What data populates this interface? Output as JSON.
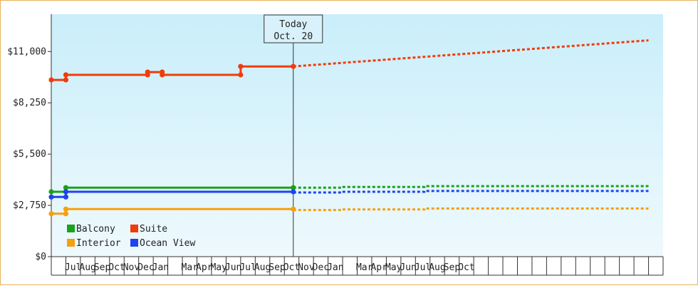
{
  "chart_data": {
    "type": "line",
    "title": "",
    "xlabel": "",
    "ylabel": "",
    "ylim": [
      0,
      13000
    ],
    "y_ticks": [
      {
        "value": 0,
        "label": "$0"
      },
      {
        "value": 2750,
        "label": "$2,750"
      },
      {
        "value": 5500,
        "label": "$5,500"
      },
      {
        "value": 8250,
        "label": "$8,250"
      },
      {
        "value": 11000,
        "label": "$11,000"
      }
    ],
    "x_axis": {
      "type": "months",
      "start": "2023-06",
      "end": "2026-11",
      "tick_labels": [
        {
          "label": "Jul",
          "month": "2023-07"
        },
        {
          "label": "Aug",
          "month": "2023-08"
        },
        {
          "label": "Sep",
          "month": "2023-09"
        },
        {
          "label": "Oct",
          "month": "2023-10"
        },
        {
          "label": "Nov",
          "month": "2023-11"
        },
        {
          "label": "Dec",
          "month": "2023-12"
        },
        {
          "label": "Jan",
          "month": "2024-01"
        },
        {
          "label": "Mar",
          "month": "2024-03"
        },
        {
          "label": "Apr",
          "month": "2024-04"
        },
        {
          "label": "May",
          "month": "2024-05"
        },
        {
          "label": "Jun",
          "month": "2024-06"
        },
        {
          "label": "Jul",
          "month": "2024-07"
        },
        {
          "label": "Aug",
          "month": "2024-08"
        },
        {
          "label": "Sep",
          "month": "2024-09"
        },
        {
          "label": "Oct",
          "month": "2024-10"
        },
        {
          "label": "Nov",
          "month": "2024-11"
        },
        {
          "label": "Dec",
          "month": "2024-12"
        },
        {
          "label": "Jan",
          "month": "2025-01"
        },
        {
          "label": "Mar",
          "month": "2025-03"
        },
        {
          "label": "Apr",
          "month": "2025-04"
        },
        {
          "label": "May",
          "month": "2025-05"
        },
        {
          "label": "Jun",
          "month": "2025-06"
        },
        {
          "label": "Jul",
          "month": "2025-07"
        },
        {
          "label": "Aug",
          "month": "2025-08"
        },
        {
          "label": "Sep",
          "month": "2025-09"
        },
        {
          "label": "Oct",
          "month": "2025-10"
        }
      ]
    },
    "today_marker": {
      "line1": "Today",
      "line2": "Oct. 20",
      "date": "2024-10-20"
    },
    "legend": {
      "placement": "bottom-left",
      "columns": 2
    },
    "series": [
      {
        "name": "Suite",
        "color": "#f03c0a",
        "points": [
          {
            "x": "2023-06-01",
            "y": 9480
          },
          {
            "x": "2023-07-01",
            "y": 9480
          },
          {
            "x": "2023-07-01",
            "y": 9750
          },
          {
            "x": "2023-12-20",
            "y": 9750
          },
          {
            "x": "2023-12-20",
            "y": 9900
          },
          {
            "x": "2024-01-20",
            "y": 9900
          },
          {
            "x": "2024-01-20",
            "y": 9750
          },
          {
            "x": "2024-07-01",
            "y": 9750
          },
          {
            "x": "2024-07-01",
            "y": 10200
          },
          {
            "x": "2024-10-20",
            "y": 10200
          }
        ],
        "projection": [
          {
            "x": "2024-10-20",
            "y": 10200
          },
          {
            "x": "2026-11-01",
            "y": 11600
          }
        ]
      },
      {
        "name": "Balcony",
        "color": "#19a319",
        "points": [
          {
            "x": "2023-06-01",
            "y": 3480
          },
          {
            "x": "2023-07-01",
            "y": 3480
          },
          {
            "x": "2023-07-01",
            "y": 3700
          },
          {
            "x": "2024-10-20",
            "y": 3700
          }
        ],
        "projection": [
          {
            "x": "2024-10-20",
            "y": 3700
          },
          {
            "x": "2025-01-31",
            "y": 3700
          },
          {
            "x": "2025-01-31",
            "y": 3740
          },
          {
            "x": "2025-07-20",
            "y": 3740
          },
          {
            "x": "2025-07-20",
            "y": 3780
          },
          {
            "x": "2026-11-01",
            "y": 3780
          }
        ]
      },
      {
        "name": "Ocean View",
        "color": "#1f43f0",
        "points": [
          {
            "x": "2023-06-01",
            "y": 3200
          },
          {
            "x": "2023-07-01",
            "y": 3200
          },
          {
            "x": "2023-07-01",
            "y": 3480
          },
          {
            "x": "2024-10-20",
            "y": 3480
          }
        ],
        "projection": [
          {
            "x": "2024-10-20",
            "y": 3440
          },
          {
            "x": "2025-01-31",
            "y": 3440
          },
          {
            "x": "2025-01-31",
            "y": 3480
          },
          {
            "x": "2025-07-20",
            "y": 3480
          },
          {
            "x": "2025-07-20",
            "y": 3520
          },
          {
            "x": "2026-11-01",
            "y": 3520
          }
        ]
      },
      {
        "name": "Interior",
        "color": "#f5a00f",
        "points": [
          {
            "x": "2023-06-01",
            "y": 2300
          },
          {
            "x": "2023-07-01",
            "y": 2300
          },
          {
            "x": "2023-07-01",
            "y": 2550
          },
          {
            "x": "2024-10-20",
            "y": 2550
          }
        ],
        "projection": [
          {
            "x": "2024-10-20",
            "y": 2500
          },
          {
            "x": "2025-01-31",
            "y": 2500
          },
          {
            "x": "2025-01-31",
            "y": 2530
          },
          {
            "x": "2025-07-20",
            "y": 2530
          },
          {
            "x": "2025-07-20",
            "y": 2580
          },
          {
            "x": "2026-11-01",
            "y": 2580
          }
        ]
      }
    ],
    "markers": [
      {
        "series": "Suite",
        "points": [
          {
            "x": "2023-06-01",
            "y": 9480
          },
          {
            "x": "2023-07-01",
            "y": 9480
          },
          {
            "x": "2023-07-01",
            "y": 9750
          },
          {
            "x": "2023-12-20",
            "y": 9750
          },
          {
            "x": "2023-12-20",
            "y": 9900
          },
          {
            "x": "2024-01-20",
            "y": 9900
          },
          {
            "x": "2024-01-20",
            "y": 9750
          },
          {
            "x": "2024-07-01",
            "y": 9750
          },
          {
            "x": "2024-07-01",
            "y": 10200
          },
          {
            "x": "2024-10-20",
            "y": 10200
          }
        ]
      },
      {
        "series": "Balcony",
        "points": [
          {
            "x": "2023-06-01",
            "y": 3480
          },
          {
            "x": "2023-07-01",
            "y": 3480
          },
          {
            "x": "2023-07-01",
            "y": 3700
          },
          {
            "x": "2024-10-20",
            "y": 3700
          }
        ]
      },
      {
        "series": "Ocean View",
        "points": [
          {
            "x": "2023-06-01",
            "y": 3200
          },
          {
            "x": "2023-07-01",
            "y": 3200
          },
          {
            "x": "2023-07-01",
            "y": 3480
          },
          {
            "x": "2024-10-20",
            "y": 3480
          }
        ]
      },
      {
        "series": "Interior",
        "points": [
          {
            "x": "2023-06-01",
            "y": 2300
          },
          {
            "x": "2023-07-01",
            "y": 2300
          },
          {
            "x": "2023-07-01",
            "y": 2550
          },
          {
            "x": "2024-10-20",
            "y": 2550
          }
        ]
      }
    ],
    "legend_order": [
      "Balcony",
      "Suite",
      "Interior",
      "Ocean View"
    ]
  }
}
